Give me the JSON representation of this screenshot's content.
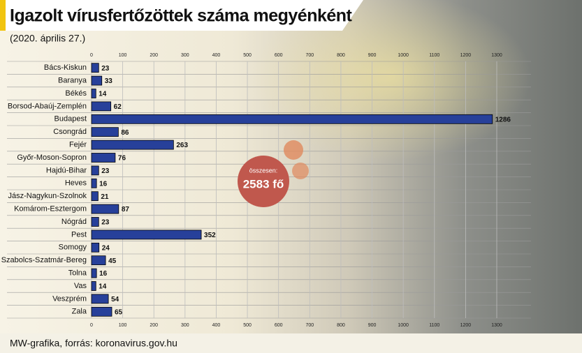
{
  "chart_data": {
    "type": "bar",
    "orientation": "horizontal",
    "title": "Igazolt vírusfertőzöttek száma megyénként",
    "subtitle": "(2020. április 27.)",
    "source": "MW-grafika, forrás: koronavirus.gov.hu",
    "annotations": [
      "összesen:",
      "2583 fő"
    ],
    "categories": [
      "Bács-Kiskun",
      "Baranya",
      "Békés",
      "Borsod-Abaúj-Zemplén",
      "Budapest",
      "Csongrád",
      "Fejér",
      "Győr-Moson-Sopron",
      "Hajdú-Bihar",
      "Heves",
      "Jász-Nagykun-Szolnok",
      "Komárom-Esztergom",
      "Nógrád",
      "Pest",
      "Somogy",
      "Szabolcs-Szatmár-Bereg",
      "Tolna",
      "Vas",
      "Veszprém",
      "Zala"
    ],
    "values": [
      23,
      33,
      14,
      62,
      1286,
      86,
      263,
      76,
      23,
      16,
      21,
      87,
      23,
      352,
      24,
      45,
      16,
      14,
      54,
      65
    ],
    "color": "#27409a",
    "xlim": [
      0,
      1300
    ],
    "xticks": [
      0,
      100,
      200,
      300,
      400,
      500,
      600,
      700,
      800,
      900,
      1000,
      1100,
      1200,
      1300
    ],
    "grid": true
  }
}
